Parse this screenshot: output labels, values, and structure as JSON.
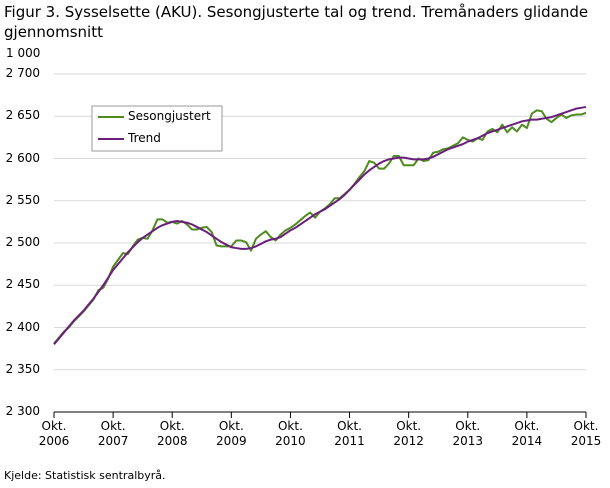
{
  "chart_data": {
    "type": "line",
    "title": "Figur 3. Sysselsette (AKU).  Sesongjusterte tal og trend. Tremånaders glidande gjennomsnitt",
    "y_unit": "1 000",
    "source": "Kjelde: Statistisk sentralbyrå.",
    "x": [
      "2006-10",
      "2006-11",
      "2006-12",
      "2007-01",
      "2007-02",
      "2007-03",
      "2007-04",
      "2007-05",
      "2007-06",
      "2007-07",
      "2007-08",
      "2007-09",
      "2007-10",
      "2007-11",
      "2007-12",
      "2008-01",
      "2008-02",
      "2008-03",
      "2008-04",
      "2008-05",
      "2008-06",
      "2008-07",
      "2008-08",
      "2008-09",
      "2008-10",
      "2008-11",
      "2008-12",
      "2009-01",
      "2009-02",
      "2009-03",
      "2009-04",
      "2009-05",
      "2009-06",
      "2009-07",
      "2009-08",
      "2009-09",
      "2009-10",
      "2009-11",
      "2009-12",
      "2010-01",
      "2010-02",
      "2010-03",
      "2010-04",
      "2010-05",
      "2010-06",
      "2010-07",
      "2010-08",
      "2010-09",
      "2010-10",
      "2010-11",
      "2010-12",
      "2011-01",
      "2011-02",
      "2011-03",
      "2011-04",
      "2011-05",
      "2011-06",
      "2011-07",
      "2011-08",
      "2011-09",
      "2011-10",
      "2011-11",
      "2011-12",
      "2012-01",
      "2012-02",
      "2012-03",
      "2012-04",
      "2012-05",
      "2012-06",
      "2012-07",
      "2012-08",
      "2012-09",
      "2012-10",
      "2012-11",
      "2012-12",
      "2013-01",
      "2013-02",
      "2013-03",
      "2013-04",
      "2013-05",
      "2013-06",
      "2013-07",
      "2013-08",
      "2013-09",
      "2013-10",
      "2013-11",
      "2013-12",
      "2014-01",
      "2014-02",
      "2014-03",
      "2014-04",
      "2014-05",
      "2014-06",
      "2014-07",
      "2014-08",
      "2014-09",
      "2014-10",
      "2014-11",
      "2014-12",
      "2015-01",
      "2015-02",
      "2015-03",
      "2015-04",
      "2015-05",
      "2015-06",
      "2015-07",
      "2015-08",
      "2015-09",
      "2015-10"
    ],
    "series": [
      {
        "name": "Sesongjustert",
        "color": "#4e8a1e",
        "values": [
          2381,
          2388,
          2395,
          2400,
          2407,
          2413,
          2419,
          2426,
          2433,
          2444,
          2447,
          2458,
          2472,
          2480,
          2488,
          2487,
          2496,
          2504,
          2506,
          2505,
          2515,
          2528,
          2528,
          2524,
          2525,
          2523,
          2526,
          2522,
          2516,
          2516,
          2518,
          2519,
          2513,
          2497,
          2496,
          2496,
          2496,
          2503,
          2503,
          2501,
          2491,
          2505,
          2510,
          2514,
          2507,
          2503,
          2510,
          2515,
          2518,
          2522,
          2527,
          2532,
          2536,
          2530,
          2537,
          2541,
          2546,
          2553,
          2553,
          2558,
          2563,
          2570,
          2578,
          2585,
          2597,
          2595,
          2588,
          2588,
          2594,
          2603,
          2603,
          2592,
          2592,
          2592,
          2600,
          2597,
          2598,
          2607,
          2608,
          2611,
          2612,
          2615,
          2618,
          2625,
          2622,
          2620,
          2624,
          2622,
          2632,
          2635,
          2631,
          2640,
          2631,
          2637,
          2632,
          2640,
          2636,
          2653,
          2657,
          2656,
          2647,
          2643,
          2648,
          2652,
          2648,
          2651,
          2652,
          2652,
          2654
        ]
      },
      {
        "name": "Trend",
        "color": "#6b1f7c",
        "values": [
          2380,
          2387,
          2394,
          2401,
          2408,
          2414,
          2420,
          2427,
          2434,
          2442,
          2450,
          2459,
          2468,
          2475,
          2482,
          2489,
          2495,
          2501,
          2506,
          2510,
          2514,
          2518,
          2521,
          2523,
          2525,
          2526,
          2525,
          2524,
          2522,
          2519,
          2516,
          2513,
          2509,
          2505,
          2501,
          2498,
          2495,
          2494,
          2493,
          2493,
          2494,
          2496,
          2499,
          2502,
          2504,
          2505,
          2507,
          2511,
          2515,
          2518,
          2522,
          2526,
          2530,
          2534,
          2537,
          2540,
          2544,
          2548,
          2552,
          2557,
          2563,
          2569,
          2575,
          2581,
          2586,
          2590,
          2594,
          2597,
          2599,
          2600,
          2601,
          2601,
          2600,
          2599,
          2599,
          2599,
          2600,
          2602,
          2605,
          2608,
          2611,
          2613,
          2615,
          2617,
          2620,
          2622,
          2624,
          2627,
          2630,
          2632,
          2634,
          2636,
          2638,
          2640,
          2642,
          2644,
          2645,
          2646,
          2646,
          2647,
          2648,
          2649,
          2651,
          2653,
          2655,
          2657,
          2659,
          2660,
          2661
        ]
      }
    ],
    "ylim": [
      2300,
      2700
    ],
    "yticks": [
      {
        "value": 2300,
        "label": "2 300"
      },
      {
        "value": 2350,
        "label": "2 350"
      },
      {
        "value": 2400,
        "label": "2 400"
      },
      {
        "value": 2450,
        "label": "2 450"
      },
      {
        "value": 2500,
        "label": "2 500"
      },
      {
        "value": 2550,
        "label": "2 550"
      },
      {
        "value": 2600,
        "label": "2 600"
      },
      {
        "value": 2650,
        "label": "2 650"
      },
      {
        "value": 2700,
        "label": "2 700"
      }
    ],
    "xticks": [
      {
        "value": "2006-10",
        "label": "Okt. 2006"
      },
      {
        "value": "2007-10",
        "label": "Okt. 2007"
      },
      {
        "value": "2008-10",
        "label": "Okt. 2008"
      },
      {
        "value": "2009-10",
        "label": "Okt. 2009"
      },
      {
        "value": "2010-10",
        "label": "Okt. 2010"
      },
      {
        "value": "2011-10",
        "label": "Okt. 2011"
      },
      {
        "value": "2012-10",
        "label": "Okt. 2012"
      },
      {
        "value": "2013-10",
        "label": "Okt. 2013"
      },
      {
        "value": "2014-10",
        "label": "Okt. 2014"
      },
      {
        "value": "2015-10",
        "label": "Okt. 2015"
      }
    ],
    "grid": true,
    "legend": "upper left"
  }
}
